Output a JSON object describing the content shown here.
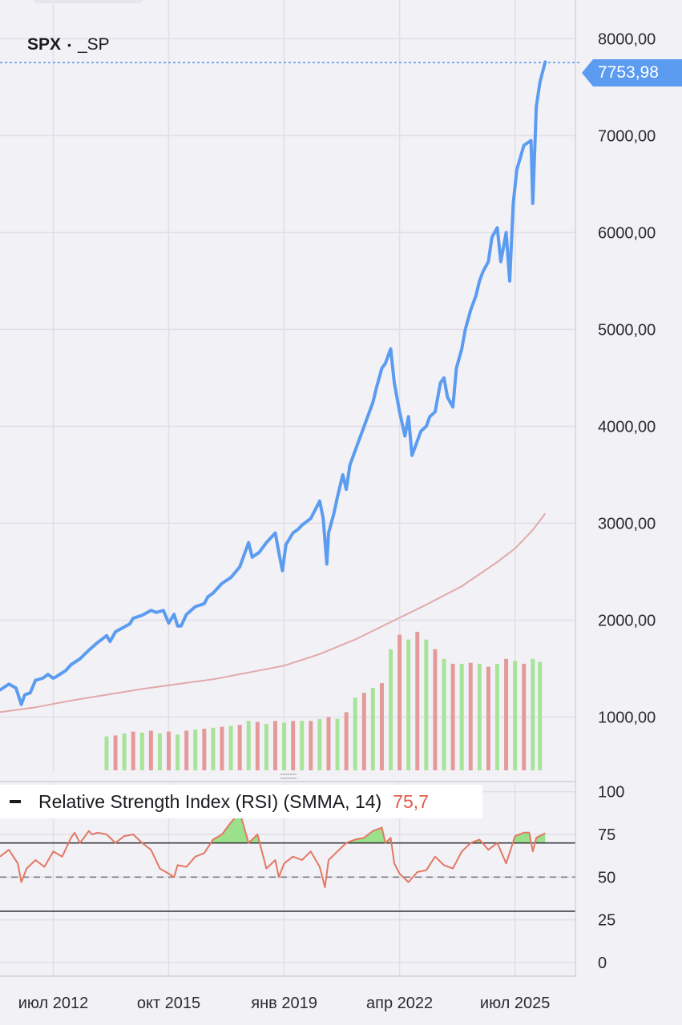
{
  "header": {
    "symbol": "SPX",
    "separator": "•",
    "exchange": "_SP"
  },
  "last_price_label": "7753,98",
  "rsi_panel": {
    "legend_label": "Relative Strength Index (RSI) (SMMA, 14)",
    "value_label": "75,7"
  },
  "colors": {
    "price_line": "#5b9cf0",
    "ma_line": "#e2a9a9",
    "volume_up": "#a8e39a",
    "volume_down": "#e49a9a",
    "rsi_line": "#e37863",
    "rsi_fill": "#9be08a",
    "price_tag": "#5b9cf0"
  },
  "chart_data": [
    {
      "type": "line",
      "y_ticks": [
        "8000,00",
        "7000,00",
        "6000,00",
        "5000,00",
        "4000,00",
        "3000,00",
        "2000,00",
        "1000,00"
      ],
      "y_tick_values": [
        8000,
        7000,
        6000,
        5000,
        4000,
        3000,
        2000,
        1000
      ],
      "ylim": [
        450,
        8400
      ],
      "x_ticks": [
        "июл 2012",
        "окт 2015",
        "янв 2019",
        "апр 2022",
        "июл 2025"
      ],
      "x_tick_values": [
        2012.5,
        2015.75,
        2019.0,
        2022.25,
        2025.5
      ],
      "xlim": [
        2011.0,
        2027.2
      ],
      "last_value": 7753.98,
      "grid": true,
      "series": [
        {
          "role": "price",
          "x": [
            2011.0,
            2011.25,
            2011.45,
            2011.6,
            2011.7,
            2011.85,
            2012.0,
            2012.2,
            2012.35,
            2012.5,
            2012.6,
            2012.85,
            2013.0,
            2013.25,
            2013.5,
            2013.75,
            2014.0,
            2014.1,
            2014.25,
            2014.5,
            2014.65,
            2014.75,
            2015.0,
            2015.25,
            2015.4,
            2015.6,
            2015.75,
            2015.9,
            2016.0,
            2016.1,
            2016.25,
            2016.5,
            2016.75,
            2016.85,
            2017.0,
            2017.25,
            2017.5,
            2017.75,
            2018.0,
            2018.1,
            2018.3,
            2018.5,
            2018.75,
            2018.85,
            2018.95,
            2019.05,
            2019.25,
            2019.4,
            2019.5,
            2019.75,
            2020.0,
            2020.1,
            2020.2,
            2020.25,
            2020.4,
            2020.5,
            2020.65,
            2020.75,
            2020.85,
            2021.0,
            2021.25,
            2021.5,
            2021.6,
            2021.75,
            2021.85,
            2022.0,
            2022.1,
            2022.25,
            2022.4,
            2022.5,
            2022.6,
            2022.75,
            2022.85,
            2023.0,
            2023.1,
            2023.25,
            2023.4,
            2023.5,
            2023.6,
            2023.75,
            2023.85,
            2024.0,
            2024.1,
            2024.25,
            2024.4,
            2024.5,
            2024.6,
            2024.75,
            2024.85,
            2025.0,
            2025.1,
            2025.25,
            2025.35,
            2025.45,
            2025.55,
            2025.75,
            2025.95,
            2026.0,
            2026.1,
            2026.2,
            2026.35
          ],
          "y": [
            1280,
            1340,
            1300,
            1130,
            1230,
            1250,
            1380,
            1400,
            1440,
            1400,
            1420,
            1480,
            1540,
            1600,
            1690,
            1770,
            1840,
            1780,
            1880,
            1930,
            1960,
            2020,
            2050,
            2100,
            2080,
            2100,
            1970,
            2060,
            1940,
            1940,
            2060,
            2140,
            2170,
            2240,
            2280,
            2380,
            2440,
            2550,
            2800,
            2650,
            2700,
            2800,
            2900,
            2700,
            2510,
            2780,
            2900,
            2940,
            2980,
            3050,
            3230,
            3050,
            2580,
            2900,
            3100,
            3270,
            3500,
            3350,
            3600,
            3750,
            4000,
            4250,
            4400,
            4600,
            4650,
            4800,
            4450,
            4150,
            3900,
            4100,
            3700,
            3850,
            3950,
            4000,
            4100,
            4150,
            4450,
            4500,
            4300,
            4200,
            4600,
            4800,
            5000,
            5200,
            5350,
            5500,
            5600,
            5700,
            5950,
            6050,
            5700,
            6000,
            5500,
            6300,
            6650,
            6900,
            6950,
            6300,
            7300,
            7550,
            7760
          ]
        },
        {
          "role": "moving_average",
          "x": [
            2011.0,
            2012.0,
            2013.0,
            2014.0,
            2015.0,
            2016.0,
            2017.0,
            2018.0,
            2019.0,
            2020.0,
            2021.0,
            2022.0,
            2022.5,
            2023.0,
            2024.0,
            2025.0,
            2025.5,
            2026.0,
            2026.35
          ],
          "y": [
            1050,
            1100,
            1170,
            1230,
            1290,
            1340,
            1390,
            1460,
            1530,
            1650,
            1800,
            1980,
            2070,
            2160,
            2350,
            2600,
            2740,
            2930,
            3100
          ]
        },
        {
          "role": "volume",
          "type": "bar",
          "x": [
            2014.0,
            2014.25,
            2014.5,
            2014.75,
            2015.0,
            2015.25,
            2015.5,
            2015.75,
            2016.0,
            2016.25,
            2016.5,
            2016.75,
            2017.0,
            2017.25,
            2017.5,
            2017.75,
            2018.0,
            2018.25,
            2018.5,
            2018.75,
            2019.0,
            2019.25,
            2019.5,
            2019.75,
            2020.0,
            2020.25,
            2020.5,
            2020.75,
            2021.0,
            2021.25,
            2021.5,
            2021.75,
            2022.0,
            2022.25,
            2022.5,
            2022.75,
            2023.0,
            2023.25,
            2023.5,
            2023.75,
            2024.0,
            2024.25,
            2024.5,
            2024.75,
            2025.0,
            2025.25,
            2025.5,
            2025.75,
            2026.0,
            2026.2
          ],
          "y": [
            800,
            810,
            830,
            850,
            840,
            860,
            830,
            850,
            820,
            860,
            870,
            880,
            890,
            900,
            910,
            920,
            960,
            950,
            930,
            960,
            940,
            960,
            960,
            960,
            980,
            1000,
            980,
            1050,
            1200,
            1250,
            1300,
            1350,
            1700,
            1850,
            1800,
            1880,
            1800,
            1700,
            1600,
            1550,
            1550,
            1560,
            1550,
            1520,
            1550,
            1600,
            1580,
            1550,
            1600,
            1570
          ],
          "direction": [
            "up",
            "down",
            "up",
            "down",
            "up",
            "down",
            "up",
            "down",
            "up",
            "down",
            "up",
            "down",
            "up",
            "down",
            "up",
            "down",
            "up",
            "down",
            "up",
            "down",
            "up",
            "down",
            "up",
            "down",
            "up",
            "down",
            "up",
            "down",
            "up",
            "down",
            "up",
            "down",
            "up",
            "down",
            "up",
            "down",
            "up",
            "down",
            "up",
            "down",
            "up",
            "down",
            "up",
            "down",
            "up",
            "down",
            "up",
            "down",
            "up",
            "up"
          ]
        }
      ]
    },
    {
      "type": "line",
      "y_ticks": [
        "100",
        "75",
        "50",
        "25",
        "0"
      ],
      "y_tick_values": [
        100,
        75,
        50,
        25,
        0
      ],
      "ylim": [
        -8,
        105
      ],
      "levels": [
        70,
        50,
        30
      ],
      "xlim": [
        2011.0,
        2027.2
      ],
      "last_value": 75.7,
      "series": [
        {
          "role": "rsi",
          "x": [
            2011.0,
            2011.25,
            2011.5,
            2011.6,
            2011.75,
            2012.0,
            2012.25,
            2012.5,
            2012.75,
            2013.0,
            2013.1,
            2013.25,
            2013.4,
            2013.5,
            2013.6,
            2013.75,
            2014.0,
            2014.25,
            2014.5,
            2014.75,
            2015.0,
            2015.25,
            2015.5,
            2015.75,
            2015.9,
            2016.0,
            2016.25,
            2016.5,
            2016.75,
            2017.0,
            2017.25,
            2017.5,
            2017.75,
            2018.0,
            2018.1,
            2018.25,
            2018.5,
            2018.75,
            2018.85,
            2019.0,
            2019.25,
            2019.5,
            2019.75,
            2020.0,
            2020.15,
            2020.25,
            2020.5,
            2020.75,
            2021.0,
            2021.25,
            2021.5,
            2021.75,
            2021.85,
            2022.0,
            2022.1,
            2022.25,
            2022.5,
            2022.75,
            2023.0,
            2023.25,
            2023.5,
            2023.75,
            2024.0,
            2024.25,
            2024.5,
            2024.75,
            2025.0,
            2025.25,
            2025.5,
            2025.75,
            2025.9,
            2026.0,
            2026.1,
            2026.35
          ],
          "y": [
            62,
            66,
            58,
            47,
            55,
            60,
            56,
            65,
            62,
            73,
            76,
            70,
            74,
            77,
            75,
            76,
            75,
            70,
            74,
            75,
            70,
            66,
            55,
            52,
            50,
            57,
            56,
            62,
            64,
            72,
            75,
            82,
            88,
            70,
            72,
            75,
            55,
            60,
            50,
            58,
            62,
            60,
            65,
            56,
            44,
            60,
            65,
            70,
            72,
            73,
            77,
            79,
            70,
            73,
            58,
            52,
            47,
            53,
            54,
            62,
            57,
            55,
            65,
            70,
            72,
            66,
            70,
            58,
            74,
            76,
            76,
            65,
            73,
            75.7
          ]
        }
      ]
    }
  ]
}
